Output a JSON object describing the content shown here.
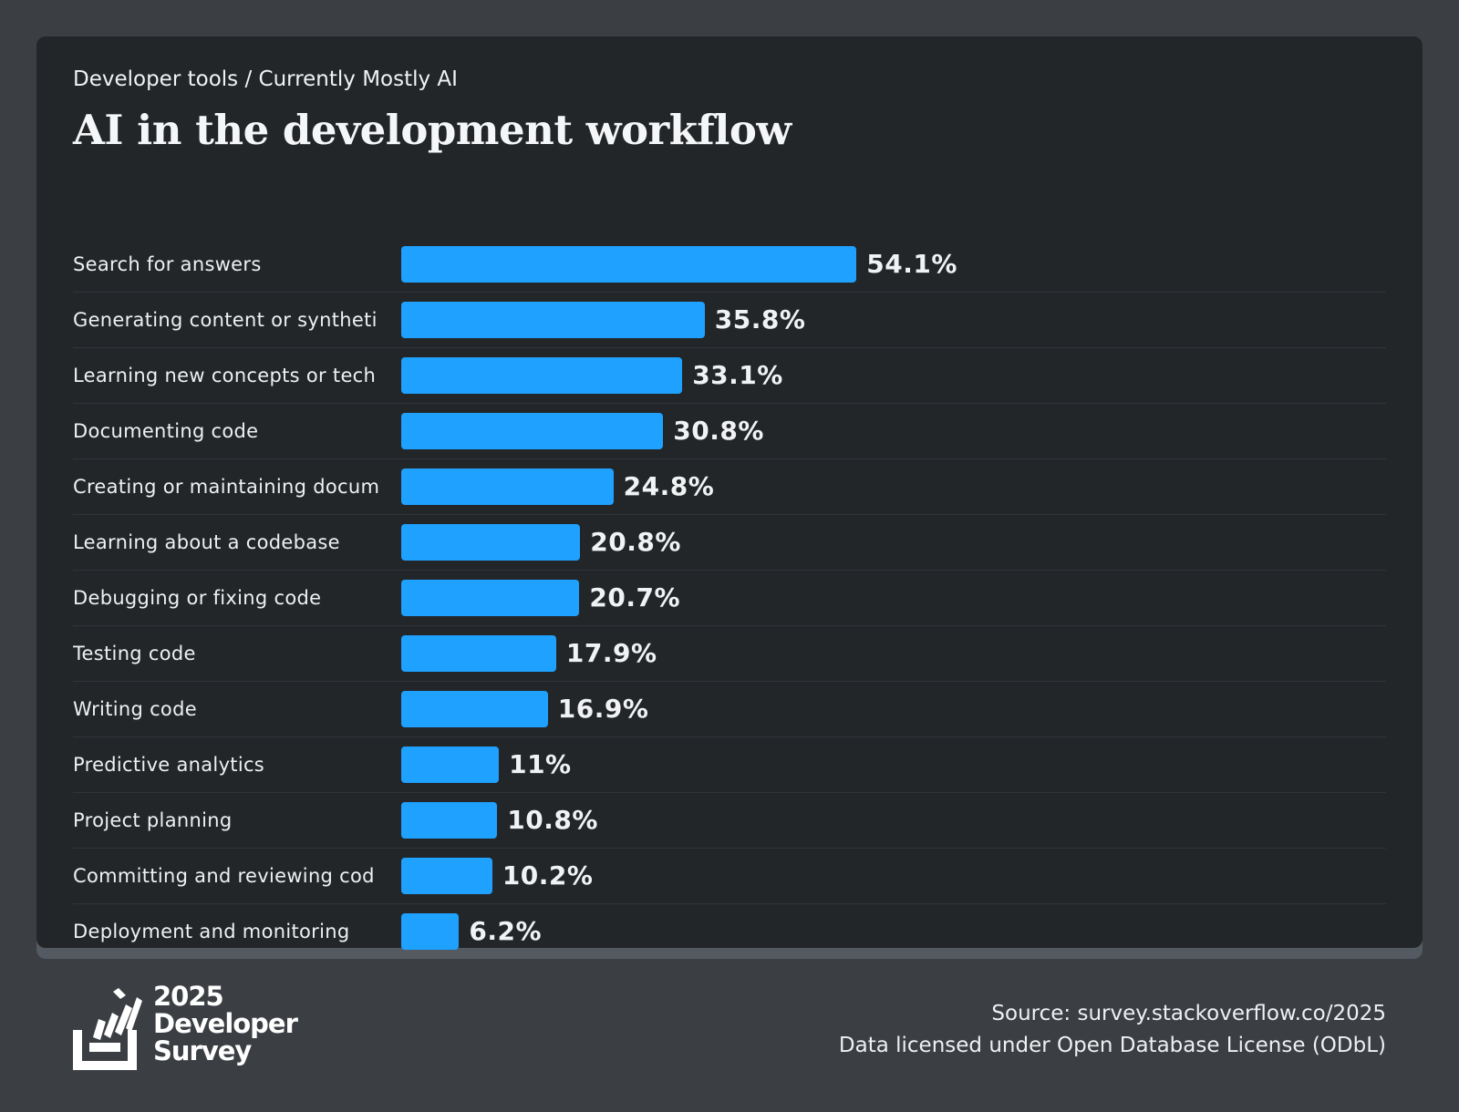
{
  "header": {
    "breadcrumb": "Developer tools / Currently Mostly AI",
    "title": "AI in the development workflow"
  },
  "chart_data": {
    "type": "bar",
    "orientation": "horizontal",
    "title": "AI in the development workflow",
    "categories": [
      "Search for answers",
      "Generating content or syntheti",
      "Learning new concepts or tech",
      "Documenting code",
      "Creating or maintaining docum",
      "Learning about a codebase",
      "Debugging or fixing code",
      "Testing code",
      "Writing code",
      "Predictive analytics",
      "Project planning",
      "Committing and reviewing cod",
      "Deployment and monitoring"
    ],
    "values": [
      54.1,
      35.8,
      33.1,
      30.8,
      24.8,
      20.8,
      20.7,
      17.9,
      16.9,
      11,
      10.8,
      10.2,
      6.2
    ],
    "value_labels": [
      "54.1%",
      "35.8%",
      "33.1%",
      "30.8%",
      "24.8%",
      "20.8%",
      "20.7%",
      "17.9%",
      "16.9%",
      "11%",
      "10.8%",
      "10.2%",
      "6.2%"
    ],
    "bar_color": "#1ea1ff",
    "grid": false,
    "legend": "none"
  },
  "footer": {
    "logo": {
      "year": "2025",
      "line1": "Developer",
      "line2": "Survey"
    },
    "source": "Source: survey.stackoverflow.co/2025",
    "license": "Data licensed under Open Database License (ODbL)"
  },
  "colors": {
    "background": "#3b3f44",
    "card": "#232629",
    "accent": "#1ea1ff"
  }
}
